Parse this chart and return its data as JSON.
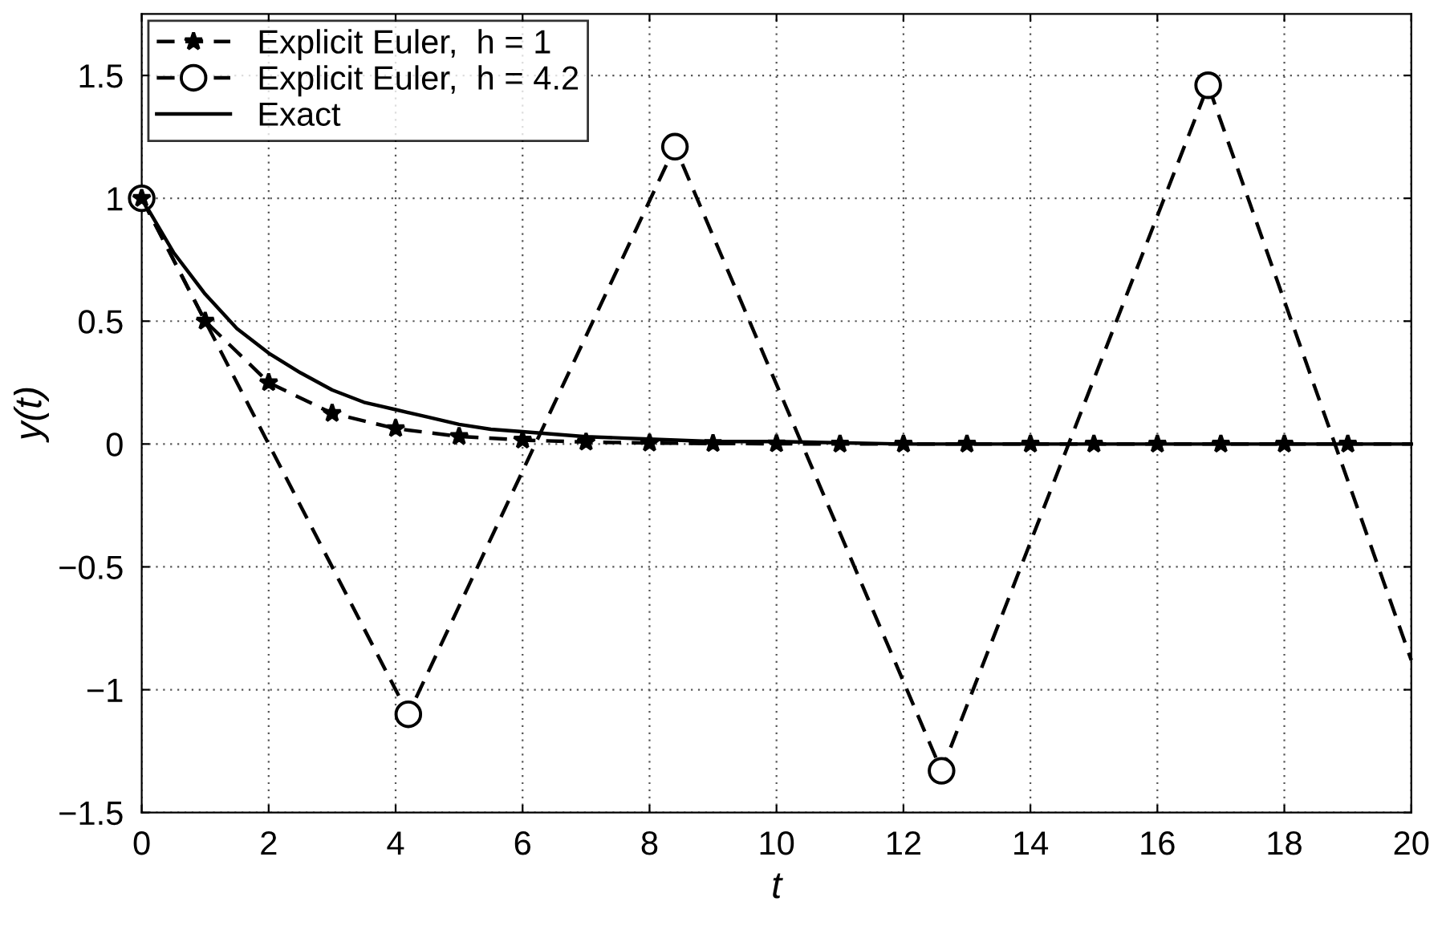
{
  "chart_data": {
    "type": "line",
    "xlabel": "t",
    "ylabel": "y(t)",
    "xlim": [
      0,
      20
    ],
    "xticks": [
      0,
      2,
      4,
      6,
      8,
      10,
      12,
      14,
      16,
      18,
      20
    ],
    "ylim": [
      -1.5,
      1.75
    ],
    "yticks": [
      {
        "value": -1.5,
        "label": "−1.5"
      },
      {
        "value": -1,
        "label": "−1"
      },
      {
        "value": -0.5,
        "label": "−0.5"
      },
      0,
      0.5,
      1,
      1.5
    ],
    "grid": true,
    "legend": "top left",
    "series": [
      {
        "name": "Explicit Euler,  h = 1",
        "color": "#000000",
        "marker": "star",
        "line_style": "dashed",
        "x": [
          0,
          1,
          2,
          3,
          4,
          5,
          6,
          7,
          8,
          9,
          10,
          11,
          12,
          13,
          14,
          15,
          16,
          17,
          18,
          19,
          20
        ],
        "values": [
          1,
          0.5,
          0.25,
          0.125,
          0.063,
          0.031,
          0.016,
          0.008,
          0.004,
          0.002,
          0.001,
          0,
          0,
          0,
          0,
          0,
          0,
          0,
          0,
          0,
          0
        ]
      },
      {
        "name": "Explicit Euler,  h = 4.2",
        "color": "#000000",
        "marker": "circle",
        "line_style": "dashed",
        "x": [
          0,
          4.2,
          8.4,
          12.6,
          16.8,
          20
        ],
        "values": [
          1,
          -1.1,
          1.21,
          -1.33,
          1.46,
          -0.88
        ]
      },
      {
        "name": "Exact",
        "color": "#000000",
        "marker": "none",
        "line_style": "solid",
        "x": [
          0,
          0.5,
          1,
          1.5,
          2,
          2.5,
          3,
          3.5,
          4,
          4.5,
          5,
          5.5,
          6,
          7,
          8,
          9,
          10,
          12,
          14,
          16,
          20
        ],
        "values": [
          1,
          0.78,
          0.61,
          0.47,
          0.37,
          0.29,
          0.22,
          0.17,
          0.14,
          0.11,
          0.08,
          0.06,
          0.05,
          0.03,
          0.02,
          0.01,
          0.01,
          0,
          0,
          0,
          0
        ]
      }
    ]
  }
}
